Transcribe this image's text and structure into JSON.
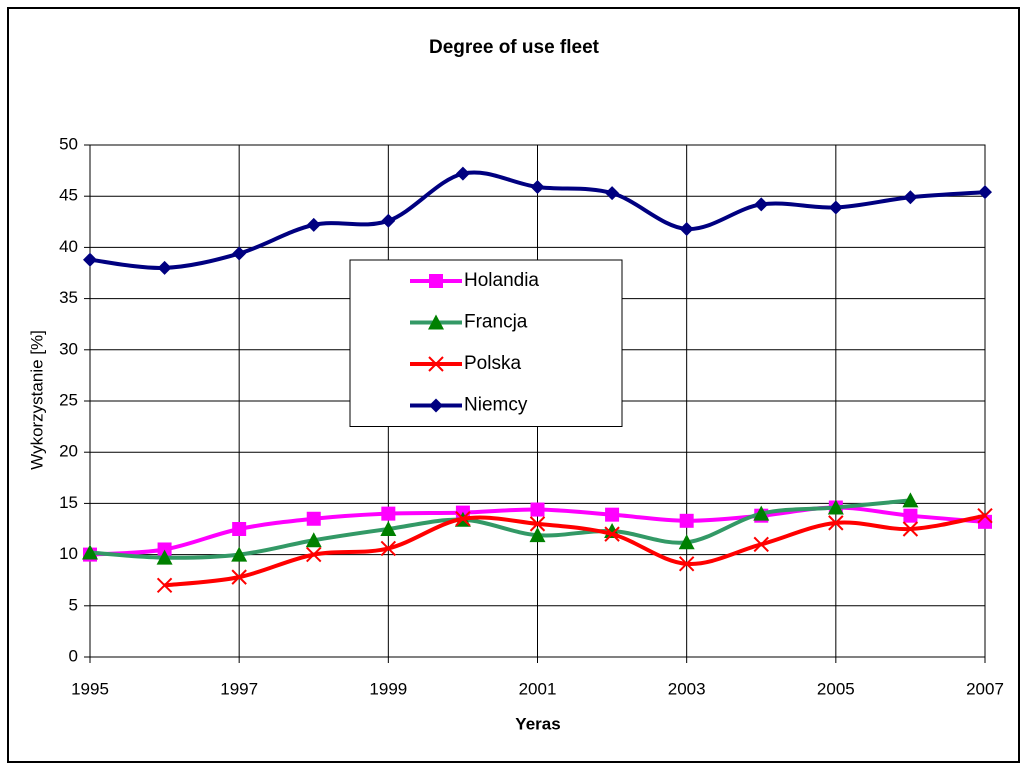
{
  "chart_data": {
    "type": "line",
    "title": "Degree of use fleet",
    "x_label": "Yeras",
    "y_label": "Wykorzystanie [%]",
    "x": [
      1995,
      1996,
      1997,
      1998,
      1999,
      2000,
      2001,
      2002,
      2003,
      2004,
      2005,
      2006,
      2007
    ],
    "xlim": [
      1995,
      2007
    ],
    "xticks": [
      1995,
      1997,
      1999,
      2001,
      2003,
      2005,
      2007
    ],
    "ylim": [
      0,
      50
    ],
    "yticks": [
      0,
      5,
      10,
      15,
      20,
      25,
      30,
      35,
      40,
      45,
      50
    ],
    "grid": true,
    "smooth": true,
    "legend": "center",
    "series": [
      {
        "name": "Holandia",
        "color": "#ff00ff",
        "marker": "square",
        "values": [
          10.0,
          10.5,
          12.5,
          13.5,
          14.0,
          14.1,
          14.4,
          13.9,
          13.3,
          13.8,
          14.6,
          13.8,
          13.2
        ]
      },
      {
        "name": "Francja",
        "color": "#339966",
        "marker": "triangle",
        "values": [
          10.2,
          9.7,
          10.0,
          11.4,
          12.5,
          13.4,
          11.9,
          12.3,
          11.2,
          14.0,
          14.6,
          15.3,
          null
        ]
      },
      {
        "name": "Polska",
        "color": "#ff0000",
        "marker": "x",
        "values": [
          null,
          7.0,
          7.8,
          10.0,
          10.6,
          13.5,
          13.0,
          12.0,
          9.1,
          11.0,
          13.1,
          12.5,
          13.8
        ]
      },
      {
        "name": "Niemcy",
        "color": "#000080",
        "marker": "diamond",
        "values": [
          38.8,
          38.0,
          39.4,
          42.2,
          42.6,
          47.2,
          45.9,
          45.3,
          41.8,
          44.2,
          43.9,
          44.9,
          45.4
        ]
      }
    ]
  }
}
